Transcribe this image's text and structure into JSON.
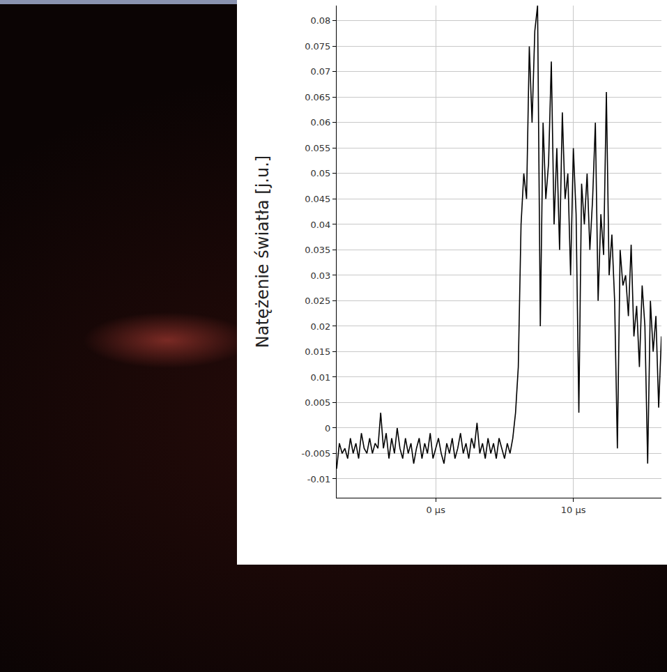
{
  "chart_data": {
    "type": "line",
    "y_label": "Natężenie światła [j.u.]",
    "color": "#000000",
    "grid": true,
    "xlim": [
      -7.2,
      16.4
    ],
    "ylim": [
      -0.0137,
      0.083
    ],
    "xticks": [
      {
        "value": 0,
        "label": "0 µs"
      },
      {
        "value": 10,
        "label": "10 µs"
      }
    ],
    "yticks": [
      -0.01,
      -0.005,
      0,
      0.005,
      0.01,
      0.015,
      0.02,
      0.025,
      0.03,
      0.035,
      0.04,
      0.045,
      0.05,
      0.055,
      0.06,
      0.065,
      0.07,
      0.075,
      0.08
    ],
    "x": [
      -7.2,
      -7.0,
      -6.8,
      -6.6,
      -6.4,
      -6.2,
      -6.0,
      -5.8,
      -5.6,
      -5.4,
      -5.2,
      -5.0,
      -4.8,
      -4.6,
      -4.4,
      -4.2,
      -4.0,
      -3.8,
      -3.6,
      -3.4,
      -3.2,
      -3.0,
      -2.8,
      -2.6,
      -2.4,
      -2.2,
      -2.0,
      -1.8,
      -1.6,
      -1.4,
      -1.2,
      -1.0,
      -0.8,
      -0.6,
      -0.4,
      -0.2,
      0,
      0.2,
      0.4,
      0.6,
      0.8,
      1.0,
      1.2,
      1.4,
      1.6,
      1.8,
      2.0,
      2.2,
      2.4,
      2.6,
      2.8,
      3.0,
      3.2,
      3.4,
      3.6,
      3.8,
      4.0,
      4.2,
      4.4,
      4.6,
      4.8,
      5.0,
      5.2,
      5.4,
      5.6,
      5.8,
      6.0,
      6.2,
      6.4,
      6.6,
      6.8,
      7.0,
      7.2,
      7.4,
      7.6,
      7.8,
      8.0,
      8.2,
      8.4,
      8.6,
      8.8,
      9.0,
      9.2,
      9.4,
      9.6,
      9.8,
      10.0,
      10.2,
      10.4,
      10.6,
      10.8,
      11.0,
      11.2,
      11.4,
      11.6,
      11.8,
      12.0,
      12.2,
      12.4,
      12.6,
      12.8,
      13.0,
      13.2,
      13.4,
      13.6,
      13.8,
      14.0,
      14.2,
      14.4,
      14.6,
      14.8,
      15.0,
      15.2,
      15.4,
      15.6,
      15.8,
      16.0,
      16.2,
      16.4
    ],
    "values": [
      -0.008,
      -0.003,
      -0.005,
      -0.004,
      -0.006,
      -0.002,
      -0.005,
      -0.003,
      -0.006,
      -0.001,
      -0.004,
      -0.005,
      -0.002,
      -0.005,
      -0.003,
      -0.004,
      0.003,
      -0.004,
      -0.001,
      -0.006,
      -0.002,
      -0.005,
      0.0,
      -0.004,
      -0.006,
      -0.002,
      -0.005,
      -0.003,
      -0.007,
      -0.004,
      -0.002,
      -0.006,
      -0.003,
      -0.005,
      -0.001,
      -0.006,
      -0.004,
      -0.002,
      -0.005,
      -0.007,
      -0.003,
      -0.005,
      -0.002,
      -0.006,
      -0.004,
      -0.001,
      -0.005,
      -0.003,
      -0.006,
      -0.002,
      -0.004,
      0.001,
      -0.005,
      -0.003,
      -0.006,
      -0.002,
      -0.005,
      -0.003,
      -0.006,
      -0.002,
      -0.004,
      -0.006,
      -0.003,
      -0.005,
      -0.002,
      0.003,
      0.012,
      0.04,
      0.05,
      0.045,
      0.075,
      0.06,
      0.078,
      0.083,
      0.02,
      0.06,
      0.045,
      0.052,
      0.072,
      0.04,
      0.055,
      0.035,
      0.062,
      0.045,
      0.05,
      0.03,
      0.055,
      0.042,
      0.003,
      0.048,
      0.04,
      0.05,
      0.035,
      0.045,
      0.06,
      0.025,
      0.042,
      0.034,
      0.066,
      0.03,
      0.038,
      0.025,
      -0.004,
      0.035,
      0.028,
      0.03,
      0.022,
      0.036,
      0.018,
      0.024,
      0.012,
      0.028,
      0.02,
      -0.007,
      0.025,
      0.015,
      0.022,
      0.004,
      0.018
    ]
  }
}
